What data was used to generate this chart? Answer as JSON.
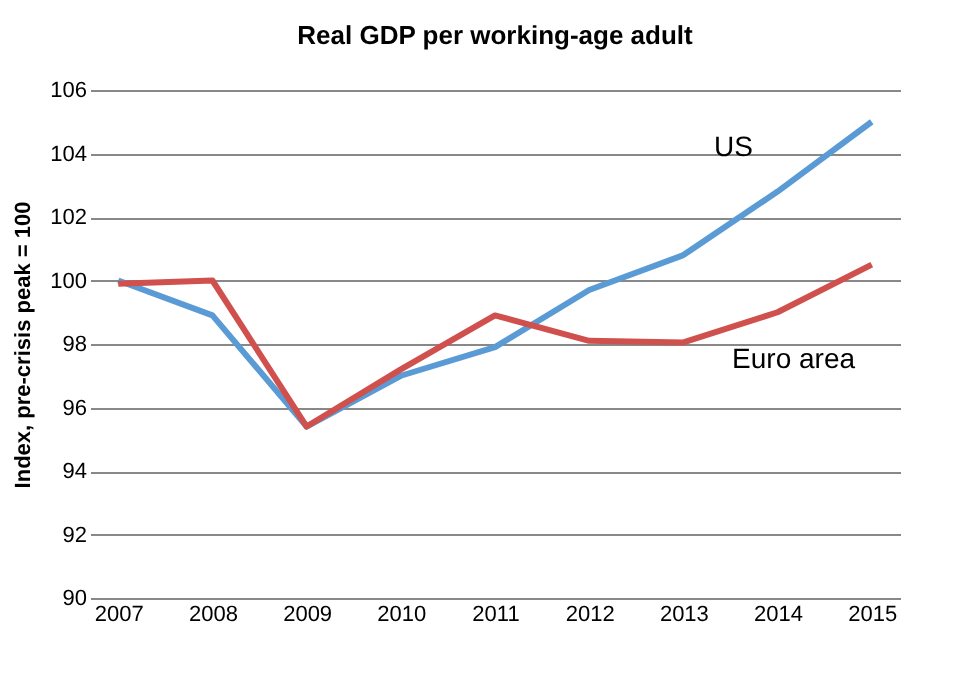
{
  "chart_data": {
    "type": "line",
    "title": "Real GDP per working-age adult",
    "ylabel": "Index, pre-crisis peak = 100",
    "categories": [
      "2007",
      "2008",
      "2009",
      "2010",
      "2011",
      "2012",
      "2013",
      "2014",
      "2015"
    ],
    "series": [
      {
        "name": "US",
        "color": "#5b9bd5",
        "values": [
          100.0,
          98.9,
          95.4,
          97.0,
          97.9,
          99.7,
          100.8,
          102.8,
          105.0
        ]
      },
      {
        "name": "Euro area",
        "color": "#d0504d",
        "values": [
          99.9,
          100.0,
          95.4,
          97.2,
          98.9,
          98.1,
          98.05,
          99.0,
          100.5
        ]
      }
    ],
    "ylim": [
      90,
      106
    ],
    "yticks": [
      90,
      92,
      94,
      96,
      98,
      100,
      102,
      104,
      106
    ],
    "grid": "y",
    "legend": false,
    "marker": "none",
    "line_style": "solid"
  }
}
